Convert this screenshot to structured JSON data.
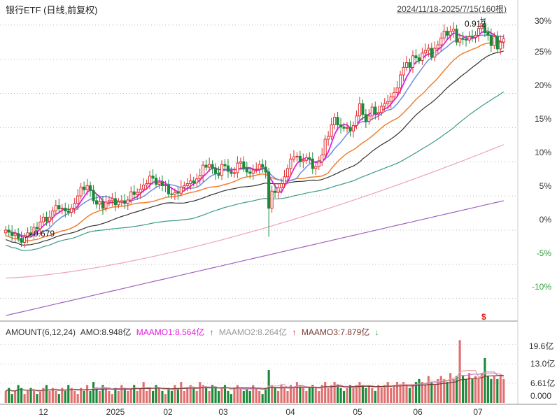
{
  "header": {
    "title": "银行ETF (日线,前复权)",
    "range": "2024/11/18-2025/7/15(160根)"
  },
  "indicators": {
    "amount": "AMOUNT(6,12,24)",
    "amo": "AMO:8.948亿",
    "maamo1": "MAAMO1:8.564亿",
    "maamo2": "MAAMO2:8.264亿",
    "maamo3": "MAAMO3:7.879亿",
    "arrow_up": "↑",
    "arrow_down": "↓",
    "colors": {
      "amo": "#333333",
      "maamo1": "#e020e0",
      "maamo2": "#999999",
      "maamo3": "#7a3b2e"
    }
  },
  "annotations": {
    "high": "0.912",
    "low": "0.679",
    "marker": "$"
  },
  "chart_data": [
    {
      "type": "candlestick",
      "title": "银行ETF (日线,前复权)",
      "x_ticks": [
        "12",
        "2025",
        "02",
        "03",
        "04",
        "05",
        "06",
        "07"
      ],
      "y_ticks": [
        "30%",
        "25%",
        "20%",
        "15%",
        "10%",
        "5%",
        "0%",
        "-5%",
        "-10%"
      ],
      "ylim_percent": [
        -13,
        31
      ],
      "high_label": 0.912,
      "low_label": 0.679,
      "series": [
        {
          "name": "close_pct",
          "values": [
            0,
            -0.3,
            -0.8,
            -0.5,
            -1.2,
            -1.8,
            -1,
            -0.4,
            -0.6,
            0.4,
            0.2,
            1.2,
            1.9,
            1.3,
            1.9,
            2.8,
            3.6,
            3.1,
            3.2,
            2.8,
            2.6,
            3.2,
            3.9,
            5,
            6.3,
            5.9,
            6.5,
            5.8,
            4.3,
            3.8,
            4.2,
            3.2,
            4.1,
            4.3,
            4.6,
            3.7,
            4.1,
            4.3,
            3.9,
            4.4,
            5.6,
            5.2,
            5.5,
            6,
            6.6,
            6.8,
            7.9,
            7.6,
            6.7,
            7,
            6.5,
            6.6,
            5.3,
            5.2,
            5.5,
            5.4,
            6.3,
            6.5,
            6.8,
            7.2,
            6.9,
            7.5,
            8,
            9.5,
            9.2,
            9.6,
            9,
            8.3,
            8,
            9.6,
            9.4,
            8.6,
            8.3,
            8.4,
            9.8,
            10,
            9,
            8.5,
            8.3,
            8.8,
            8.9,
            9.6,
            9.2,
            8.5,
            3.2,
            5.7,
            5.5,
            6.2,
            6.8,
            7.8,
            9,
            10.4,
            10.7,
            10.8,
            10,
            10.2,
            10.6,
            10.4,
            9,
            9.3,
            10,
            11,
            13.3,
            13.7,
            15.4,
            16.5,
            15.4,
            15.1,
            14.9,
            15,
            14.5,
            15.3,
            16.7,
            18.5,
            16.9,
            15.9,
            16.7,
            18,
            17,
            17.2,
            18.1,
            18.5,
            18.8,
            19.5,
            20.1,
            20.8,
            22.7,
            23.8,
            24.5,
            23.8,
            25.5,
            25.2,
            24.8,
            25.9,
            26.3,
            26.6,
            25.3,
            26.6,
            27.1,
            28.1,
            29.1,
            28.5,
            29.1,
            29.4,
            27.5,
            28,
            27.9,
            27.8,
            28.3,
            28.2,
            28.5,
            29.5,
            30.2,
            28.9,
            28.5,
            27,
            28.3,
            26.5,
            27.5,
            28
          ]
        },
        {
          "name": "MA_short",
          "color": "#e020e0"
        },
        {
          "name": "MA_mid",
          "color": "#6b8fe0"
        },
        {
          "name": "MA_long1",
          "color": "#f08030"
        },
        {
          "name": "MA_long2",
          "color": "#333333"
        },
        {
          "name": "MA_long3",
          "color": "#3a9a8a"
        },
        {
          "name": "MA_long4",
          "color": "#f0a0c0"
        },
        {
          "name": "MA_long5",
          "color": "#a060c0"
        }
      ]
    },
    {
      "type": "bar",
      "title": "AMOUNT(6,12,24)",
      "y_ticks": [
        "19.6亿",
        "13.0亿",
        "6.61亿",
        "0.000"
      ],
      "ylim": [
        0,
        22
      ],
      "values": [
        4,
        5,
        3,
        4,
        6,
        5,
        3,
        4,
        5,
        4,
        3,
        4,
        5,
        6,
        4,
        5,
        4,
        3,
        5,
        4,
        6,
        5,
        4,
        3,
        5,
        4,
        6,
        4,
        7,
        5,
        4,
        6,
        5,
        4,
        3,
        5,
        4,
        6,
        5,
        4,
        5,
        6,
        4,
        5,
        7,
        4,
        5,
        4,
        6,
        5,
        4,
        3,
        5,
        4,
        6,
        5,
        7,
        4,
        5,
        6,
        5,
        4,
        7,
        6,
        5,
        4,
        6,
        5,
        4,
        5,
        6,
        4,
        3,
        5,
        6,
        5,
        4,
        5,
        4,
        6,
        5,
        4,
        3,
        5,
        11,
        6,
        5,
        4,
        6,
        5,
        4,
        6,
        5,
        7,
        6,
        5,
        4,
        5,
        6,
        5,
        4,
        6,
        7,
        5,
        6,
        7,
        6,
        5,
        4,
        5,
        6,
        5,
        6,
        7,
        6,
        5,
        6,
        5,
        4,
        6,
        5,
        6,
        7,
        5,
        6,
        7,
        6,
        7,
        6,
        5,
        6,
        7,
        8,
        7,
        6,
        9,
        7,
        6,
        8,
        9,
        8,
        7,
        10,
        8,
        9,
        21,
        9,
        8,
        10,
        8,
        9,
        8,
        10,
        15,
        9,
        8,
        9,
        8,
        9,
        8
      ],
      "ma_colors": [
        "#e8a0a0",
        "#c080c0",
        "#7a3b2e"
      ]
    }
  ]
}
